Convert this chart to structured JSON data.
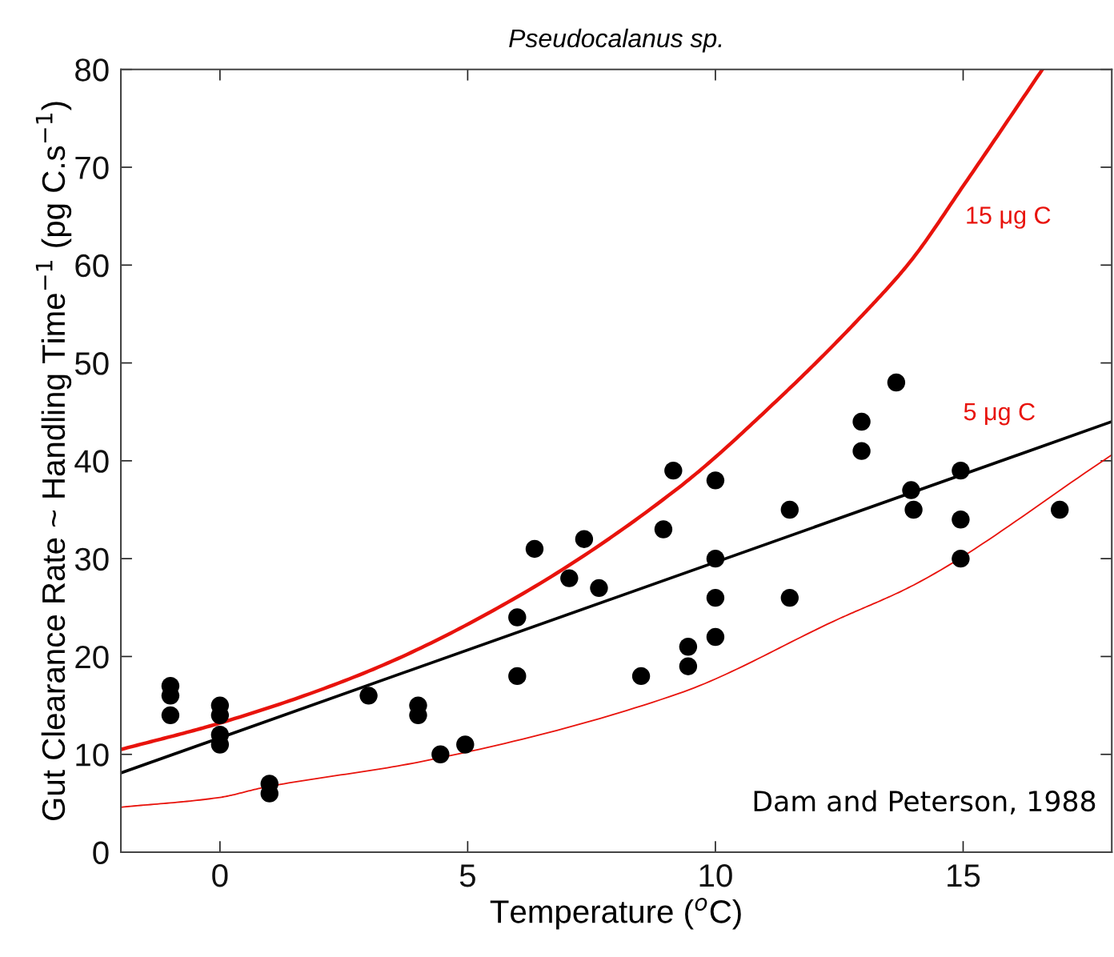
{
  "chart_data": {
    "type": "scatter",
    "title": "Pseudocalanus sp.",
    "xlabel": "Temperature ($^{o}$C)",
    "ylabel": "Gut Clearance Rate ~ Handling Time$^{−1}$ (pg C.s$^{−1}$)",
    "xlim": [
      -2,
      18
    ],
    "xticks": [
      0,
      5,
      10,
      15
    ],
    "ylim": [
      0,
      80
    ],
    "yticks": [
      0,
      10,
      20,
      30,
      40,
      50,
      60,
      70,
      80
    ],
    "grid": false,
    "legend": false,
    "marker": "circle",
    "series": [
      {
        "color": "#000000",
        "x": [
          -1,
          -1,
          -1,
          0,
          0,
          0,
          0,
          1,
          1,
          3,
          4,
          4,
          4.45,
          4.95,
          6,
          6,
          6.35,
          7.05,
          7.35,
          7.65,
          8.5,
          8.95,
          9.15,
          9.45,
          9.45,
          10,
          10,
          10,
          10,
          11.5,
          11.5,
          12.95,
          12.95,
          13.65,
          13.95,
          14,
          14.95,
          14.95,
          14.95,
          16.95
        ],
        "values": [
          17,
          16,
          14,
          15,
          14,
          12,
          11,
          7,
          6,
          16,
          15,
          14,
          10,
          11,
          24,
          18,
          31,
          28,
          32,
          27,
          18,
          33,
          39,
          21,
          19,
          38,
          30,
          26,
          22,
          35,
          26,
          44,
          41,
          48,
          37,
          35,
          39,
          34,
          30,
          35
        ]
      },
      {
        "type": "line",
        "color": "#000000",
        "marker": "none",
        "x": [
          -2,
          18
        ],
        "values": [
          8.1,
          44
        ]
      },
      {
        "type": "line",
        "color": "#e8130c",
        "marker": "none",
        "x": [
          -2,
          0,
          3,
          5.9,
          9.27,
          11.29,
          12.97,
          13.94,
          15.03,
          16.6
        ],
        "values": [
          10.5,
          13.2,
          18.5,
          25.8,
          37.3,
          46.4,
          54.9,
          60.4,
          68.3,
          80
        ]
      },
      {
        "type": "line",
        "color": "#e8130c",
        "marker": "none",
        "x": [
          -2,
          0,
          0.87,
          4,
          9.25,
          12.47,
          14,
          18
        ],
        "values": [
          4.6,
          5.6,
          6.6,
          9.2,
          16.2,
          23.8,
          27.3,
          40.6
        ]
      }
    ],
    "annotations": [
      "15 μg C",
      "5 μg C",
      "Dam and Peterson, 1988"
    ]
  }
}
